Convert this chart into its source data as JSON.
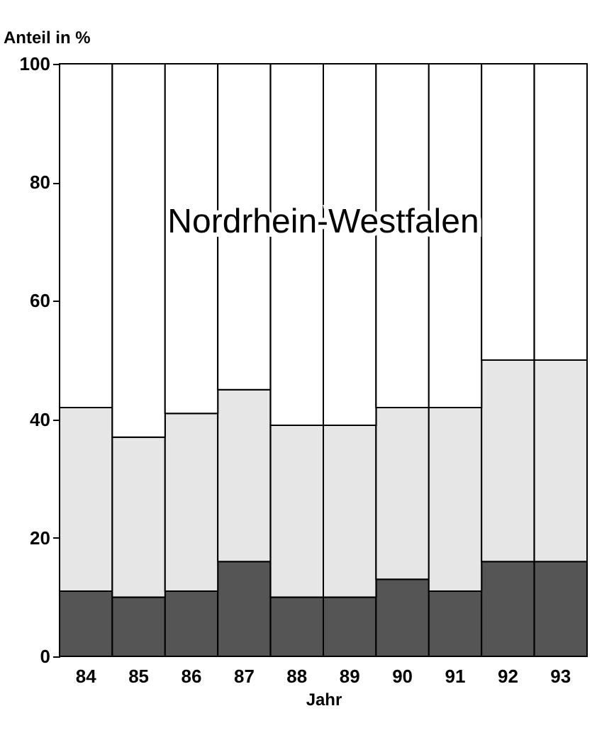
{
  "chart_data": {
    "type": "bar",
    "stacked": true,
    "title": "Nordrhein-Westfalen",
    "xlabel": "Jahr",
    "ylabel": "Anteil in %",
    "categories": [
      "84",
      "85",
      "86",
      "87",
      "88",
      "89",
      "90",
      "91",
      "92",
      "93"
    ],
    "series": [
      {
        "color": "#555555",
        "values": [
          11,
          10,
          11,
          16,
          10,
          10,
          13,
          11,
          16,
          16
        ]
      },
      {
        "color": "#e6e6e6",
        "values": [
          31,
          27,
          30,
          29,
          29,
          29,
          29,
          31,
          34,
          34
        ]
      },
      {
        "color": "#ffffff",
        "values": [
          58,
          63,
          59,
          55,
          61,
          61,
          58,
          58,
          50,
          50
        ]
      }
    ],
    "ylim": [
      0,
      100
    ],
    "yticks": [
      0,
      20,
      40,
      60,
      80,
      100
    ],
    "grid": false,
    "legend": false
  }
}
